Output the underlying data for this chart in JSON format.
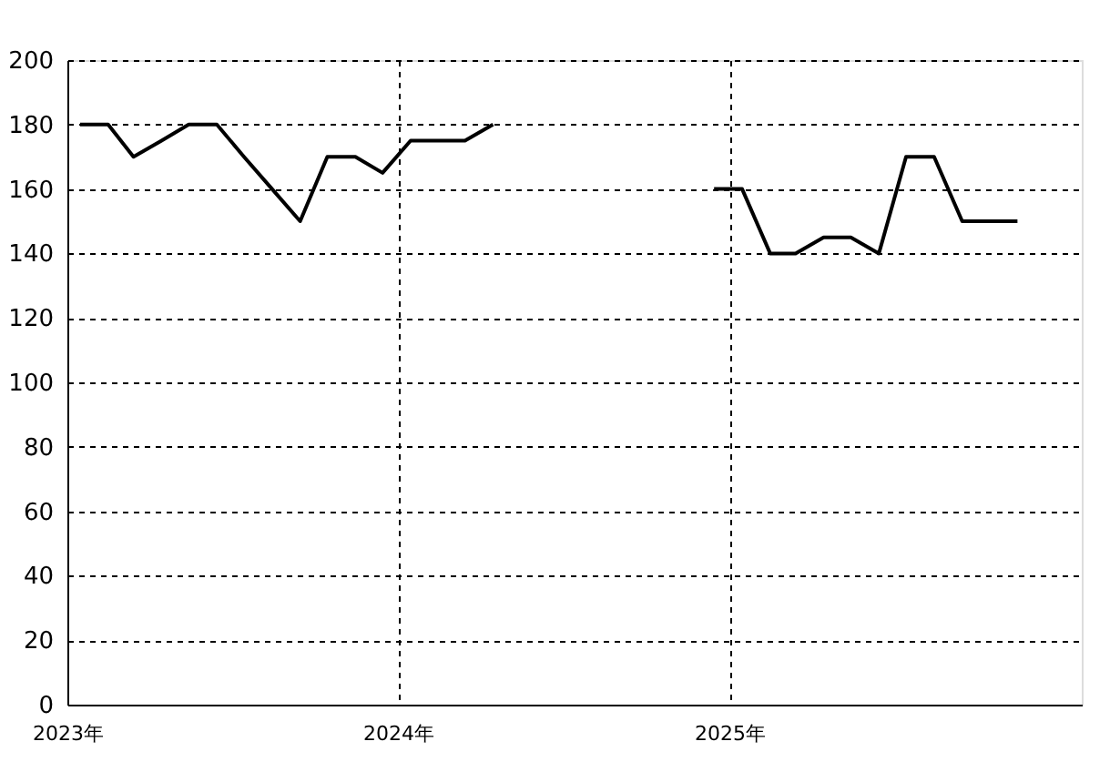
{
  "chart_data": {
    "type": "line",
    "x": [
      "2023-01-15",
      "2023-02-15",
      "2023-03-15",
      "2023-04-15",
      "2023-05-15",
      "2023-06-15",
      "2023-07-15",
      "2023-08-15",
      "2023-09-15",
      "2023-10-15",
      "2023-11-15",
      "2023-12-15",
      "2024-01-15",
      "2024-02-15",
      "2024-03-15",
      "2024-04-15",
      "2024-05-15",
      "2024-06-15",
      "2024-07-15",
      "2024-08-15",
      "2024-09-15",
      "2024-10-15",
      "2024-11-15",
      "2024-12-15",
      "2025-01-15",
      "2025-02-15",
      "2025-03-15",
      "2025-04-15",
      "2025-05-15",
      "2025-06-15",
      "2025-07-15",
      "2025-08-15",
      "2025-09-15",
      "2025-10-15",
      "2025-11-15"
    ],
    "series": [
      {
        "color": "#000000",
        "values": [
          180,
          180,
          170,
          175,
          180,
          180,
          170,
          160,
          150,
          170,
          170,
          165,
          175,
          175,
          175,
          180,
          null,
          null,
          null,
          null,
          null,
          null,
          null,
          160,
          160,
          140,
          140,
          145,
          145,
          140,
          170,
          170,
          150,
          150,
          150
        ]
      }
    ],
    "xlim": [
      "2023-01-01",
      "2026-01-25"
    ],
    "xticks": [
      {
        "value": "2023-01-01",
        "label": "2023年"
      },
      {
        "value": "2024-01-01",
        "label": "2024年"
      },
      {
        "value": "2025-01-01",
        "label": "2025年"
      }
    ],
    "ylim": [
      0,
      200
    ],
    "yticks": [
      0,
      20,
      40,
      60,
      80,
      100,
      120,
      140,
      160,
      180,
      200
    ],
    "grid": true,
    "marker": "none",
    "line_style": "solid",
    "legend": false
  }
}
